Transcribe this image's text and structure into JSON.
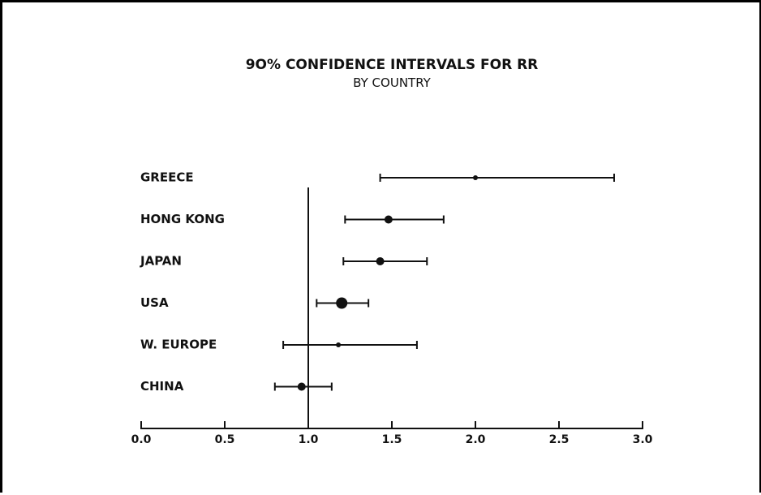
{
  "chart_data": {
    "type": "scatter",
    "title": "9O% CONFIDENCE INTERVALS FOR RR",
    "subtitle": "BY COUNTRY",
    "xlim": [
      0.0,
      3.0
    ],
    "ticks": [
      0.0,
      0.5,
      1.0,
      1.5,
      2.0,
      2.5,
      3.0
    ],
    "tick_labels": [
      "0.0",
      "0.5",
      "1.0",
      "1.5",
      "2.0",
      "2.5",
      "3.0"
    ],
    "reference_line": 1.0,
    "categories": [
      "GREECE",
      "HONG KONG",
      "JAPAN",
      "USA",
      "W. EUROPE",
      "CHINA"
    ],
    "series": [
      {
        "estimates": [
          2.0,
          1.48,
          1.43,
          1.2,
          1.18,
          0.96
        ],
        "lower": [
          1.43,
          1.22,
          1.21,
          1.05,
          0.85,
          0.8
        ],
        "upper": [
          2.83,
          1.81,
          1.71,
          1.36,
          1.65,
          1.14
        ],
        "point_size": [
          "small",
          "medium",
          "medium",
          "large",
          "small",
          "medium"
        ]
      }
    ],
    "grid": false,
    "legend": "none"
  }
}
